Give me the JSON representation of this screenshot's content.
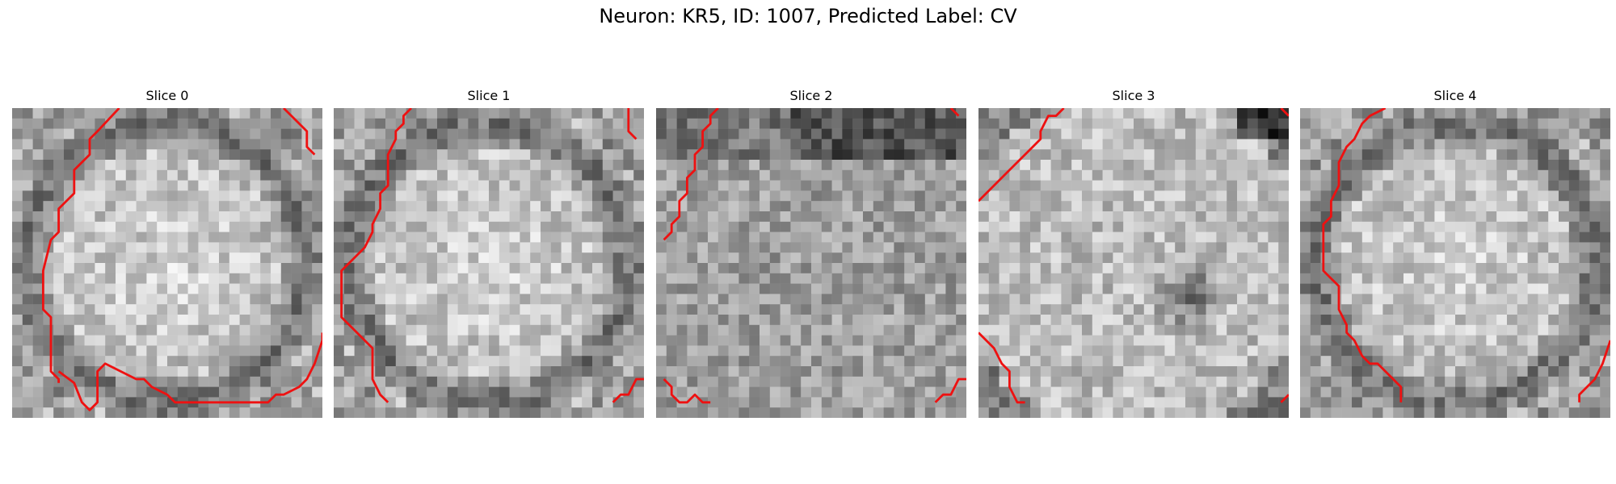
{
  "figure": {
    "title": "Neuron: KR5, ID: 1007, Predicted Label: CV"
  },
  "slices": [
    {
      "title": "Slice 0",
      "seed": 11,
      "profile": "ring-bright-center"
    },
    {
      "title": "Slice 1",
      "seed": 23,
      "profile": "ring-bright-center"
    },
    {
      "title": "Slice 2",
      "seed": 37,
      "profile": "noisy-uniform"
    },
    {
      "title": "Slice 3",
      "seed": 41,
      "profile": "bright-dark-spot"
    },
    {
      "title": "Slice 4",
      "seed": 59,
      "profile": "ring-bright-center"
    }
  ],
  "colors": {
    "contour": "#ee1111",
    "colormap": "gray"
  }
}
